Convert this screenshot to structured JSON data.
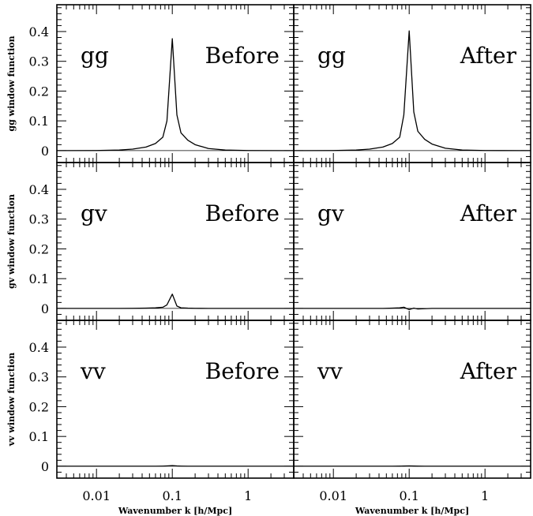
{
  "chart_data": {
    "type": "line",
    "xscale": "log",
    "xlim": [
      0.003,
      4
    ],
    "ylim": [
      -0.04,
      0.49
    ],
    "xticks": [
      0.01,
      0.1,
      1
    ],
    "xtick_labels": [
      "0.01",
      "0.1",
      "1"
    ],
    "yticks": [
      0,
      0.1,
      0.2,
      0.3,
      0.4
    ],
    "ytick_labels": [
      "0",
      "0.1",
      "0.2",
      "0.3",
      "0.4"
    ],
    "xlabel": "Wavenumber k [h/Mpc]",
    "columns": [
      "Before",
      "After"
    ],
    "rows": [
      {
        "key": "gg",
        "label": "gg",
        "ylabel": "gg window function"
      },
      {
        "key": "gv",
        "label": "gv",
        "ylabel": "gv window function"
      },
      {
        "key": "vv",
        "label": "vv",
        "ylabel": "vv window function"
      }
    ],
    "x": [
      0.003,
      0.01,
      0.02,
      0.03,
      0.045,
      0.06,
      0.075,
      0.085,
      0.1,
      0.115,
      0.13,
      0.16,
      0.2,
      0.3,
      0.5,
      1,
      4
    ],
    "series": {
      "gg_Before": [
        0,
        0.0005,
        0.002,
        0.005,
        0.012,
        0.024,
        0.045,
        0.1,
        0.376,
        0.12,
        0.06,
        0.035,
        0.02,
        0.007,
        0.002,
        0.0005,
        0
      ],
      "gg_After": [
        0,
        0.0005,
        0.002,
        0.005,
        0.012,
        0.024,
        0.045,
        0.12,
        0.402,
        0.13,
        0.065,
        0.038,
        0.022,
        0.008,
        0.002,
        0.0005,
        0
      ],
      "gv_Before": [
        0,
        0,
        0,
        0.0005,
        0.001,
        0.002,
        0.004,
        0.012,
        0.048,
        0.008,
        0.002,
        0.001,
        0.0005,
        0,
        0,
        0,
        0
      ],
      "gv_After": [
        0,
        0,
        0,
        0,
        0,
        0.001,
        0.002,
        0.004,
        -0.004,
        0.001,
        -0.002,
        -0.001,
        0,
        0,
        0,
        0,
        0
      ],
      "vv_Before": [
        0,
        0,
        0,
        0,
        0,
        0,
        0.0005,
        0.001,
        0.002,
        0.001,
        0.0005,
        0,
        0,
        0,
        0,
        0,
        0
      ],
      "vv_After": [
        0,
        0,
        0,
        0,
        0,
        0,
        0.0003,
        0.0006,
        0.001,
        0.0006,
        0.0003,
        0,
        0,
        0,
        0,
        0,
        0
      ]
    }
  }
}
